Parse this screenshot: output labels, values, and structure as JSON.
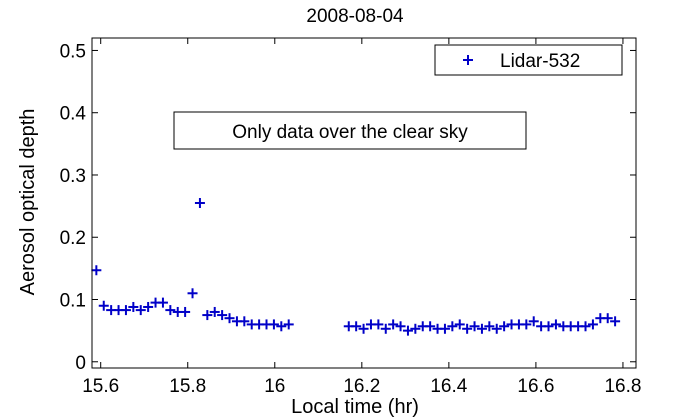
{
  "chart_data": {
    "type": "scatter",
    "title": "2008-08-04",
    "xlabel": "Local time (hr)",
    "ylabel": "Aerosol optical depth",
    "xlim": [
      15.58,
      16.83
    ],
    "ylim": [
      -0.01,
      0.52
    ],
    "xticks": [
      15.6,
      15.8,
      16,
      16.2,
      16.4,
      16.6,
      16.8
    ],
    "xtick_labels": [
      "15.6",
      "15.8",
      "16",
      "16.2",
      "16.4",
      "16.6",
      "16.8"
    ],
    "yticks": [
      0,
      0.1,
      0.2,
      0.3,
      0.4,
      0.5
    ],
    "ytick_labels": [
      "0",
      "0.1",
      "0.2",
      "0.3",
      "0.4",
      "0.5"
    ],
    "grid": false,
    "legend_position": "top-right",
    "annotation": "Only data over the clear sky",
    "colors": {
      "series": "#0000c8",
      "axis": "#000000"
    },
    "series": [
      {
        "name": "Lidar-532",
        "marker": "plus",
        "x": [
          15.59,
          15.607,
          15.624,
          15.641,
          15.658,
          15.675,
          15.692,
          15.709,
          15.726,
          15.743,
          15.76,
          15.777,
          15.794,
          15.811,
          15.828,
          15.845,
          15.862,
          15.879,
          15.896,
          15.913,
          15.93,
          15.947,
          15.964,
          15.981,
          15.998,
          16.015,
          16.032,
          16.17,
          16.187,
          16.204,
          16.221,
          16.238,
          16.255,
          16.272,
          16.289,
          16.306,
          16.323,
          16.34,
          16.357,
          16.374,
          16.391,
          16.408,
          16.425,
          16.442,
          16.459,
          16.476,
          16.493,
          16.51,
          16.527,
          16.544,
          16.561,
          16.578,
          16.595,
          16.612,
          16.629,
          16.646,
          16.663,
          16.68,
          16.697,
          16.714,
          16.731,
          16.748,
          16.765,
          16.782
        ],
        "y": [
          0.147,
          0.09,
          0.083,
          0.083,
          0.083,
          0.088,
          0.083,
          0.088,
          0.095,
          0.095,
          0.083,
          0.08,
          0.08,
          0.11,
          0.255,
          0.075,
          0.08,
          0.075,
          0.07,
          0.065,
          0.065,
          0.06,
          0.06,
          0.06,
          0.06,
          0.057,
          0.06,
          0.057,
          0.057,
          0.053,
          0.06,
          0.06,
          0.053,
          0.06,
          0.057,
          0.05,
          0.053,
          0.057,
          0.057,
          0.053,
          0.053,
          0.057,
          0.06,
          0.053,
          0.057,
          0.053,
          0.057,
          0.053,
          0.057,
          0.06,
          0.06,
          0.06,
          0.065,
          0.057,
          0.057,
          0.06,
          0.057,
          0.057,
          0.057,
          0.057,
          0.06,
          0.07,
          0.07,
          0.065
        ]
      }
    ]
  }
}
